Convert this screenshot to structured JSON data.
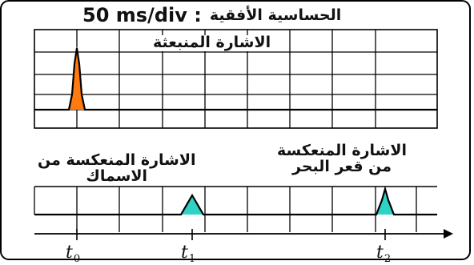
{
  "title": {
    "value": "50 ms/div :",
    "label": "الحساسية الأفقية"
  },
  "labels": {
    "emitted": "الاشارة المنبعثة",
    "fish": [
      "الاشارة المنعكسة من",
      "الاسماك"
    ],
    "seabed": [
      "الاشارة المنعكسة",
      "من قعر البحر"
    ]
  },
  "ticks": [
    {
      "base": "t",
      "sub": "0"
    },
    {
      "base": "t",
      "sub": "1"
    },
    {
      "base": "t",
      "sub": "2"
    }
  ],
  "colors": {
    "signal_emitted": "#ff7a10",
    "signal_reflected": "#2fd3c5",
    "grid": "#000000",
    "trace": "#000000"
  }
}
